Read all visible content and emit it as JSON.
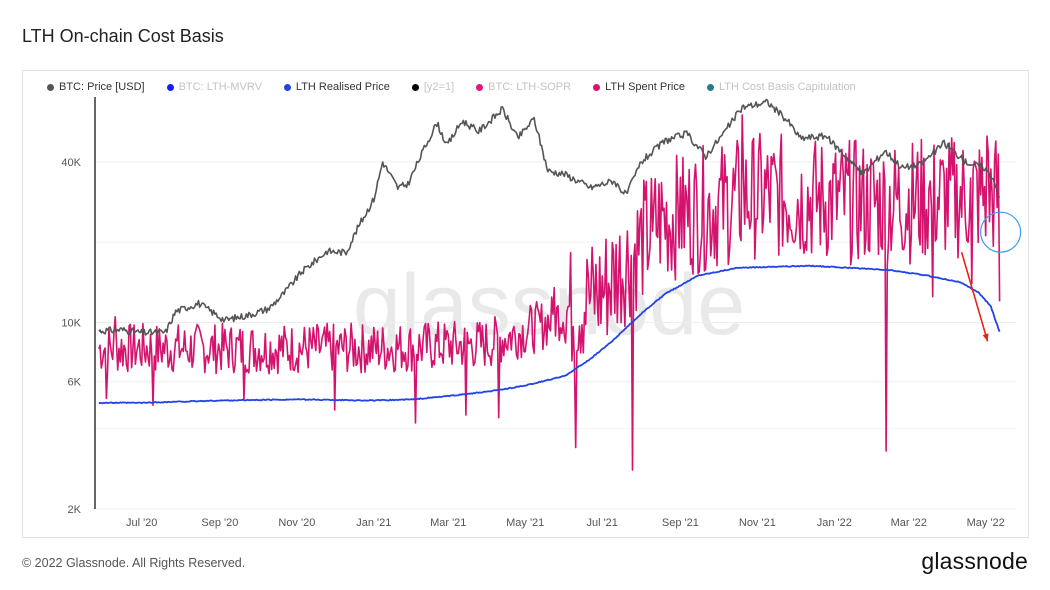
{
  "page": {
    "title": "LTH On-chain Cost Basis"
  },
  "footer": {
    "copyright": "© 2022 Glassnode. All Rights Reserved.",
    "logo": "glassnode"
  },
  "watermark": "glassnode",
  "legend": [
    {
      "label": "BTC: Price [USD]",
      "color": "#555555",
      "active": true
    },
    {
      "label": "BTC: LTH-MVRV",
      "color": "#1a1aff",
      "active": false
    },
    {
      "label": "LTH Realised Price",
      "color": "#2244e6",
      "active": true
    },
    {
      "label": "[y2=1]",
      "color": "#000000",
      "active": false
    },
    {
      "label": "BTC: LTH-SOPR",
      "color": "#e8157a",
      "active": false
    },
    {
      "label": "LTH Spent Price",
      "color": "#d4136e",
      "active": true
    },
    {
      "label": "LTH Cost Basis Capitulation",
      "color": "#2a7a8a",
      "active": false
    }
  ],
  "chart_data": {
    "type": "line",
    "y_scale": "log",
    "ylim": [
      2000,
      70000
    ],
    "xlim": [
      "2020-05-25",
      "2022-05-25"
    ],
    "y_ticks": [
      {
        "value": 2000,
        "label": "2K"
      },
      {
        "value": 6000,
        "label": "6K"
      },
      {
        "value": 10000,
        "label": "10K"
      },
      {
        "value": 40000,
        "label": "40K"
      }
    ],
    "x_ticks": [
      {
        "value": "2020-07-01",
        "label": "Jul '20"
      },
      {
        "value": "2020-09-01",
        "label": "Sep '20"
      },
      {
        "value": "2020-11-01",
        "label": "Nov '20"
      },
      {
        "value": "2021-01-01",
        "label": "Jan '21"
      },
      {
        "value": "2021-03-01",
        "label": "Mar '21"
      },
      {
        "value": "2021-05-01",
        "label": "May '21"
      },
      {
        "value": "2021-07-01",
        "label": "Jul '21"
      },
      {
        "value": "2021-09-01",
        "label": "Sep '21"
      },
      {
        "value": "2021-11-01",
        "label": "Nov '21"
      },
      {
        "value": "2022-01-01",
        "label": "Jan '22"
      },
      {
        "value": "2022-03-01",
        "label": "Mar '22"
      },
      {
        "value": "2022-05-01",
        "label": "May '22"
      }
    ],
    "grid": true,
    "legend_position": "top-left",
    "series": [
      {
        "name": "BTC: Price [USD]",
        "color": "#555555",
        "points": [
          [
            "2020-05-28",
            9300
          ],
          [
            "2020-06-15",
            9400
          ],
          [
            "2020-07-01",
            9150
          ],
          [
            "2020-07-20",
            9200
          ],
          [
            "2020-07-28",
            11000
          ],
          [
            "2020-08-15",
            11800
          ],
          [
            "2020-09-05",
            10200
          ],
          [
            "2020-09-25",
            10700
          ],
          [
            "2020-10-10",
            11300
          ],
          [
            "2020-10-22",
            12900
          ],
          [
            "2020-11-05",
            15500
          ],
          [
            "2020-11-25",
            18500
          ],
          [
            "2020-12-10",
            18300
          ],
          [
            "2020-12-20",
            23000
          ],
          [
            "2021-01-01",
            29000
          ],
          [
            "2021-01-08",
            40000
          ],
          [
            "2021-01-20",
            32000
          ],
          [
            "2021-01-28",
            33000
          ],
          [
            "2021-02-10",
            45000
          ],
          [
            "2021-02-20",
            56000
          ],
          [
            "2021-02-28",
            46000
          ],
          [
            "2021-03-12",
            57000
          ],
          [
            "2021-03-25",
            52000
          ],
          [
            "2021-04-13",
            63000
          ],
          [
            "2021-04-25",
            49000
          ],
          [
            "2021-05-08",
            58000
          ],
          [
            "2021-05-19",
            37000
          ],
          [
            "2021-06-01",
            36000
          ],
          [
            "2021-06-22",
            32000
          ],
          [
            "2021-07-10",
            34000
          ],
          [
            "2021-07-20",
            30000
          ],
          [
            "2021-08-01",
            40000
          ],
          [
            "2021-08-20",
            48000
          ],
          [
            "2021-09-06",
            51000
          ],
          [
            "2021-09-21",
            42000
          ],
          [
            "2021-10-05",
            51000
          ],
          [
            "2021-10-20",
            64000
          ],
          [
            "2021-11-09",
            67000
          ],
          [
            "2021-11-25",
            57000
          ],
          [
            "2021-12-05",
            49000
          ],
          [
            "2021-12-25",
            50000
          ],
          [
            "2022-01-10",
            42000
          ],
          [
            "2022-01-24",
            36000
          ],
          [
            "2022-02-10",
            44000
          ],
          [
            "2022-02-24",
            38000
          ],
          [
            "2022-03-10",
            39000
          ],
          [
            "2022-03-29",
            47000
          ],
          [
            "2022-04-15",
            40000
          ],
          [
            "2022-04-30",
            38000
          ],
          [
            "2022-05-08",
            34000
          ],
          [
            "2022-05-12",
            29000
          ]
        ]
      },
      {
        "name": "LTH Realised Price",
        "color": "#2244e6",
        "points": [
          [
            "2020-05-28",
            5000
          ],
          [
            "2020-07-01",
            5000
          ],
          [
            "2020-09-01",
            5100
          ],
          [
            "2020-11-01",
            5150
          ],
          [
            "2021-01-01",
            5100
          ],
          [
            "2021-02-01",
            5150
          ],
          [
            "2021-03-01",
            5300
          ],
          [
            "2021-04-01",
            5500
          ],
          [
            "2021-05-01",
            5800
          ],
          [
            "2021-06-01",
            6300
          ],
          [
            "2021-06-20",
            7200
          ],
          [
            "2021-07-10",
            8600
          ],
          [
            "2021-08-01",
            10800
          ],
          [
            "2021-08-20",
            12800
          ],
          [
            "2021-09-15",
            15000
          ],
          [
            "2021-10-15",
            16000
          ],
          [
            "2021-11-15",
            16200
          ],
          [
            "2021-12-15",
            16300
          ],
          [
            "2022-01-15",
            16000
          ],
          [
            "2022-02-15",
            15700
          ],
          [
            "2022-03-15",
            15000
          ],
          [
            "2022-04-10",
            14200
          ],
          [
            "2022-04-25",
            13000
          ],
          [
            "2022-05-05",
            11500
          ],
          [
            "2022-05-12",
            9200
          ]
        ]
      },
      {
        "name": "LTH Spent Price",
        "color": "#d4136e",
        "daily_range": {
          "baseline": [
            [
              "2020-05-28",
              8000
            ],
            [
              "2020-12-31",
              8000
            ],
            [
              "2021-03-31",
              8300
            ],
            [
              "2021-05-15",
              9800
            ],
            [
              "2021-06-30",
              13000
            ],
            [
              "2021-08-15",
              24000
            ],
            [
              "2021-10-31",
              30000
            ],
            [
              "2022-01-31",
              28000
            ],
            [
              "2022-04-30",
              30000
            ],
            [
              "2022-05-11",
              30000
            ]
          ],
          "spikes": [
            [
              "2020-06-10",
              10500
            ],
            [
              "2020-06-03",
              5200
            ],
            [
              "2020-07-10",
              4900
            ],
            [
              "2020-09-20",
              5100
            ],
            [
              "2020-12-01",
              4700
            ],
            [
              "2021-02-03",
              4200
            ],
            [
              "2021-03-15",
              4500
            ],
            [
              "2021-04-10",
              4400
            ],
            [
              "2021-05-24",
              13500
            ],
            [
              "2021-06-10",
              3400
            ],
            [
              "2021-06-20",
              15000
            ],
            [
              "2021-07-25",
              2800
            ],
            [
              "2021-08-10",
              22000
            ],
            [
              "2021-09-01",
              35000
            ],
            [
              "2021-10-20",
              60000
            ],
            [
              "2022-02-11",
              3300
            ],
            [
              "2022-03-20",
              12500
            ],
            [
              "2022-04-20",
              14000
            ],
            [
              "2022-05-02",
              50000
            ]
          ],
          "end": [
            "2022-05-12",
            12000
          ]
        }
      }
    ]
  }
}
